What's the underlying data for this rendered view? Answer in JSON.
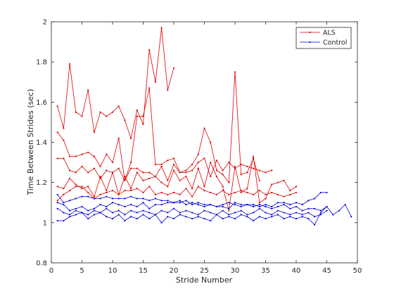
{
  "chart_data": {
    "type": "line",
    "xlabel": "Stride Number",
    "ylabel": "Time Between Strides (sec)",
    "xlim": [
      0,
      50
    ],
    "ylim": [
      0.8,
      2.0
    ],
    "xticks": [
      0,
      5,
      10,
      15,
      20,
      25,
      30,
      35,
      40,
      45,
      50
    ],
    "yticks": [
      0.8,
      1.0,
      1.2,
      1.4,
      1.6,
      1.8,
      2.0
    ],
    "xtick_labels": [
      "0",
      "5",
      "10",
      "15",
      "20",
      "25",
      "30",
      "35",
      "40",
      "45",
      "50"
    ],
    "ytick_labels": [
      "0.8",
      "1",
      "1.2",
      "1.4",
      "1.6",
      "1.8",
      "2"
    ],
    "grid": false,
    "legend_position": "top-right",
    "legend": [
      {
        "label": "ALS",
        "color": "#e00000"
      },
      {
        "label": "Control",
        "color": "#0000e0"
      }
    ],
    "series": [
      {
        "group": "ALS",
        "color": "#e00000",
        "x": [
          1,
          2,
          3,
          4,
          5,
          6,
          7,
          8,
          9,
          10,
          11,
          12,
          13,
          14,
          15,
          16,
          17,
          18,
          19,
          20
        ],
        "y": [
          1.58,
          1.47,
          1.79,
          1.55,
          1.53,
          1.66,
          1.45,
          1.55,
          1.53,
          1.55,
          1.58,
          1.51,
          1.42,
          1.56,
          1.49,
          1.86,
          1.7,
          1.97,
          1.66,
          1.77
        ]
      },
      {
        "group": "ALS",
        "color": "#e00000",
        "x": [
          1,
          2,
          3,
          4,
          5,
          6,
          7,
          8,
          9,
          10,
          11,
          12,
          13,
          14,
          15,
          16,
          17,
          18,
          19,
          20,
          21,
          22,
          23,
          24,
          25,
          26,
          27,
          28,
          29,
          30,
          31,
          32,
          33,
          34
        ],
        "y": [
          1.45,
          1.41,
          1.33,
          1.33,
          1.34,
          1.35,
          1.33,
          1.28,
          1.34,
          1.3,
          1.42,
          1.21,
          1.3,
          1.53,
          1.53,
          1.67,
          1.29,
          1.29,
          1.31,
          1.32,
          1.25,
          1.26,
          1.29,
          1.34,
          1.47,
          1.4,
          1.26,
          1.24,
          1.2,
          1.75,
          1.24,
          1.25,
          1.32,
          1.21
        ]
      },
      {
        "group": "ALS",
        "color": "#e00000",
        "x": [
          1,
          2,
          3,
          4,
          5,
          6,
          7,
          8,
          9,
          10,
          11,
          12,
          13,
          14,
          15,
          16,
          17,
          18,
          19,
          20,
          21,
          22,
          23,
          24,
          25,
          26,
          27,
          28,
          29,
          30,
          31,
          32,
          33,
          34,
          35,
          36
        ],
        "y": [
          1.32,
          1.32,
          1.26,
          1.25,
          1.28,
          1.25,
          1.27,
          1.22,
          1.26,
          1.25,
          1.27,
          1.21,
          1.27,
          1.27,
          1.25,
          1.25,
          1.23,
          1.28,
          1.21,
          1.29,
          1.25,
          1.25,
          1.26,
          1.3,
          1.32,
          1.23,
          1.31,
          1.26,
          1.3,
          1.27,
          1.29,
          1.28,
          1.27,
          1.26,
          1.25,
          1.26
        ]
      },
      {
        "group": "ALS",
        "color": "#e00000",
        "x": [
          1,
          2,
          3,
          4,
          5,
          6,
          7,
          8,
          9,
          10,
          11,
          12,
          13,
          14,
          15,
          16,
          17,
          18,
          19,
          20,
          21,
          22,
          23,
          24,
          25,
          26,
          27,
          28,
          29,
          30,
          31,
          32,
          33,
          34,
          35,
          36,
          37,
          38,
          39,
          40
        ],
        "y": [
          1.18,
          1.17,
          1.22,
          1.19,
          1.17,
          1.18,
          1.13,
          1.23,
          1.16,
          1.25,
          1.14,
          1.23,
          1.17,
          1.25,
          1.21,
          1.22,
          1.23,
          1.2,
          1.18,
          1.26,
          1.21,
          1.23,
          1.17,
          1.27,
          1.18,
          1.3,
          1.23,
          1.18,
          1.06,
          1.28,
          1.15,
          1.17,
          1.33,
          1.1,
          1.12,
          1.19,
          1.2,
          1.21,
          1.16,
          1.18
        ]
      },
      {
        "group": "ALS",
        "color": "#e00000",
        "x": [
          1,
          2,
          3,
          4,
          5,
          6,
          7,
          8,
          9,
          10,
          11,
          12,
          13,
          14,
          15,
          16,
          17,
          18,
          19,
          20,
          21,
          22,
          23,
          24,
          25,
          26,
          27,
          28,
          29,
          30,
          31,
          32,
          33,
          34,
          35,
          36,
          37,
          38,
          39,
          40
        ],
        "y": [
          1.11,
          1.14,
          1.16,
          1.18,
          1.18,
          1.15,
          1.12,
          1.14,
          1.15,
          1.16,
          1.14,
          1.16,
          1.16,
          1.17,
          1.15,
          1.18,
          1.14,
          1.15,
          1.14,
          1.15,
          1.14,
          1.17,
          1.13,
          1.18,
          1.16,
          1.15,
          1.14,
          1.16,
          1.14,
          1.15,
          1.16,
          1.15,
          1.14,
          1.16,
          1.14,
          1.15,
          1.14,
          1.13,
          1.14,
          1.15
        ]
      },
      {
        "group": "Control",
        "color": "#0000e0",
        "x": [
          1,
          2,
          3,
          4,
          5,
          6,
          7,
          8,
          9,
          10,
          11,
          12,
          13,
          14,
          15,
          16,
          17,
          18,
          19,
          20,
          21,
          22,
          23,
          24,
          25,
          26,
          27,
          28,
          29,
          30,
          31,
          32,
          33,
          34,
          35,
          36,
          37,
          38,
          39,
          40,
          41,
          42,
          43,
          44,
          45
        ],
        "y": [
          1.14,
          1.1,
          1.11,
          1.12,
          1.13,
          1.13,
          1.12,
          1.12,
          1.13,
          1.12,
          1.12,
          1.12,
          1.13,
          1.12,
          1.12,
          1.11,
          1.12,
          1.11,
          1.11,
          1.1,
          1.1,
          1.11,
          1.09,
          1.1,
          1.09,
          1.09,
          1.08,
          1.09,
          1.1,
          1.09,
          1.08,
          1.09,
          1.09,
          1.08,
          1.09,
          1.08,
          1.1,
          1.1,
          1.09,
          1.1,
          1.09,
          1.11,
          1.12,
          1.15,
          1.15
        ]
      },
      {
        "group": "Control",
        "color": "#0000e0",
        "x": [
          1,
          2,
          3,
          4,
          5,
          6,
          7,
          8,
          9,
          10,
          11,
          12,
          13,
          14,
          15,
          16,
          17,
          18,
          19,
          20,
          21,
          22,
          23,
          24,
          25,
          26,
          27,
          28,
          29,
          30,
          31,
          32,
          33,
          34,
          35,
          36,
          37,
          38,
          39,
          40,
          41,
          42,
          43,
          44,
          45
        ],
        "y": [
          1.1,
          1.09,
          1.06,
          1.07,
          1.08,
          1.06,
          1.07,
          1.09,
          1.08,
          1.1,
          1.09,
          1.08,
          1.09,
          1.08,
          1.1,
          1.07,
          1.09,
          1.09,
          1.1,
          1.1,
          1.11,
          1.09,
          1.1,
          1.09,
          1.08,
          1.09,
          1.08,
          1.08,
          1.07,
          1.1,
          1.09,
          1.09,
          1.08,
          1.09,
          1.08,
          1.07,
          1.08,
          1.09,
          1.07,
          1.08,
          1.06,
          1.07,
          1.07,
          1.06,
          1.08
        ]
      },
      {
        "group": "Control",
        "color": "#0000e0",
        "x": [
          1,
          2,
          3,
          4,
          5,
          6,
          7,
          8,
          9,
          10,
          11,
          12,
          13,
          14,
          15,
          16,
          17,
          18,
          19,
          20,
          21,
          22,
          23,
          24,
          25,
          26,
          27,
          28,
          29,
          30,
          31,
          32,
          33,
          34,
          35,
          36,
          37,
          38,
          39,
          40,
          41,
          42,
          43,
          44,
          45
        ],
        "y": [
          1.07,
          1.05,
          1.04,
          1.06,
          1.05,
          1.04,
          1.06,
          1.05,
          1.07,
          1.05,
          1.06,
          1.04,
          1.06,
          1.05,
          1.06,
          1.05,
          1.04,
          1.06,
          1.05,
          1.07,
          1.05,
          1.06,
          1.05,
          1.04,
          1.06,
          1.05,
          1.04,
          1.06,
          1.04,
          1.05,
          1.06,
          1.04,
          1.05,
          1.07,
          1.05,
          1.04,
          1.06,
          1.05,
          1.04,
          1.05,
          1.04,
          1.05,
          1.03,
          1.04,
          1.06
        ]
      },
      {
        "group": "Control",
        "color": "#0000e0",
        "x": [
          1,
          2,
          3,
          4,
          5,
          6,
          7,
          8,
          9,
          10,
          11,
          12,
          13,
          14,
          15,
          16,
          17,
          18,
          19,
          20,
          21,
          22,
          23,
          24,
          25,
          26,
          27,
          28,
          29,
          30,
          31,
          32,
          33,
          34,
          35,
          36,
          37,
          38,
          39,
          40,
          41,
          42,
          43,
          44,
          45,
          46,
          47,
          48,
          49
        ],
        "y": [
          1.01,
          1.01,
          1.03,
          1.04,
          1.05,
          1.02,
          1.04,
          1.05,
          1.03,
          1.02,
          1.04,
          1.01,
          1.03,
          1.02,
          1.04,
          1.02,
          1.04,
          1.0,
          1.03,
          1.02,
          1.04,
          1.03,
          1.02,
          1.03,
          1.02,
          1.01,
          1.04,
          1.02,
          1.03,
          1.02,
          1.04,
          1.03,
          1.01,
          1.03,
          1.02,
          1.03,
          1.04,
          1.02,
          1.03,
          1.02,
          1.03,
          1.02,
          0.99,
          1.05,
          1.08,
          1.04,
          1.06,
          1.09,
          1.03
        ]
      }
    ]
  }
}
